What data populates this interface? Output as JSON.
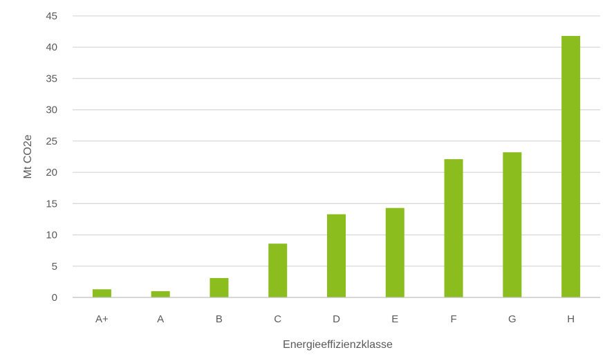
{
  "chart_data": {
    "type": "bar",
    "title": "",
    "xlabel": "Energieeffizienzklasse",
    "ylabel": "Mt CO2e",
    "categories": [
      "A+",
      "A",
      "B",
      "C",
      "D",
      "E",
      "F",
      "G",
      "H"
    ],
    "values": [
      1.3,
      1.0,
      3.1,
      8.6,
      13.3,
      14.3,
      22.1,
      23.2,
      41.8
    ],
    "ylim": [
      0,
      45
    ],
    "yticks": [
      0,
      5,
      10,
      15,
      20,
      25,
      30,
      35,
      40,
      45
    ],
    "ytick_labels": [
      "0",
      "5",
      "10",
      "15",
      "20",
      "25",
      "30",
      "35",
      "40",
      "45"
    ],
    "grid": true,
    "legend": "none",
    "colors": {
      "bar": "#8cbd1f",
      "grid": "#d9d9d9",
      "axis": "#bfbfbf",
      "text": "#595959"
    }
  }
}
